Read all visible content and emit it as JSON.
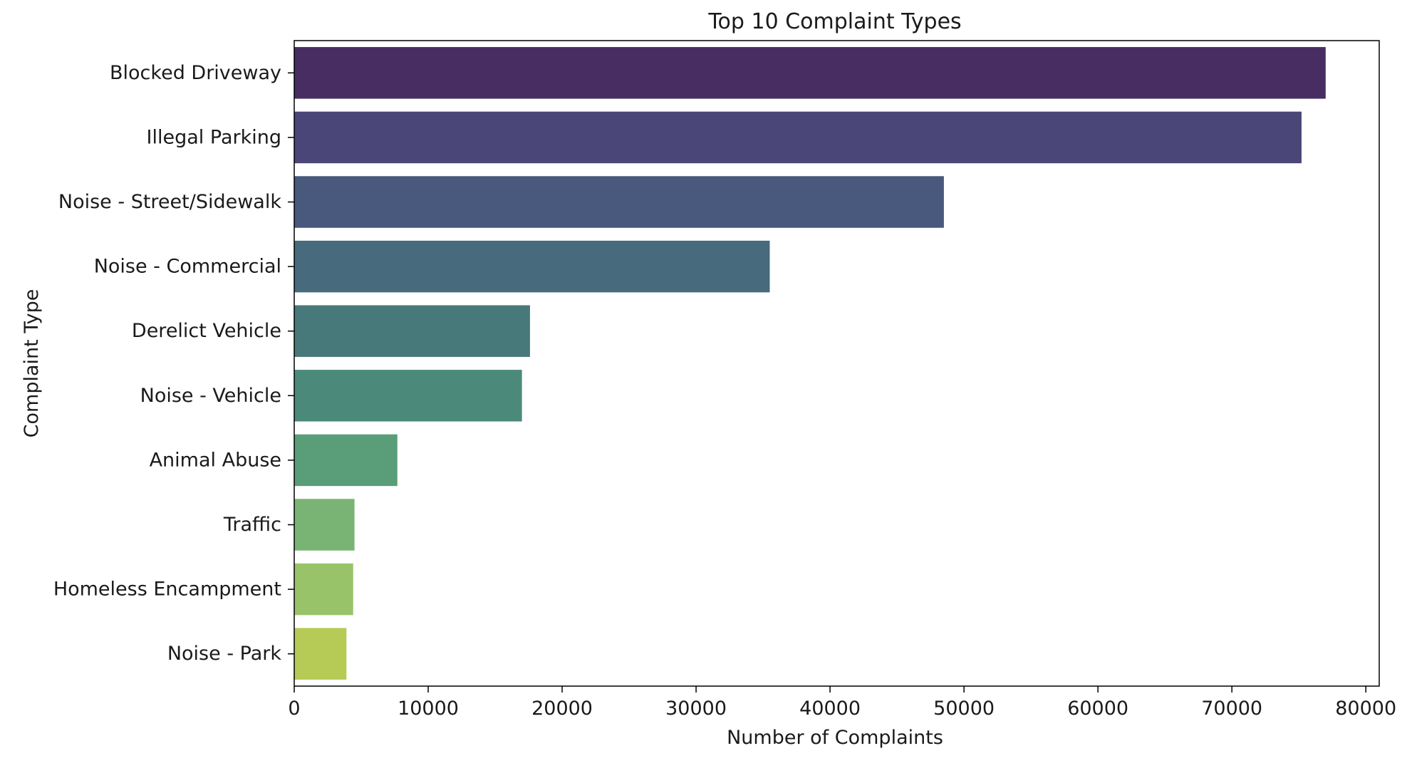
{
  "chart_data": {
    "type": "bar",
    "orientation": "horizontal",
    "title": "Top 10 Complaint Types",
    "xlabel": "Number of Complaints",
    "ylabel": "Complaint Type",
    "categories": [
      "Blocked Driveway",
      "Illegal Parking",
      "Noise - Street/Sidewalk",
      "Noise - Commercial",
      "Derelict Vehicle",
      "Noise - Vehicle",
      "Animal Abuse",
      "Traffic",
      "Homeless Encampment",
      "Noise - Park"
    ],
    "values": [
      77000,
      75200,
      48500,
      35500,
      17600,
      17000,
      7700,
      4500,
      4400,
      3900
    ],
    "xlim": [
      0,
      81000
    ],
    "xticks": [
      0,
      10000,
      20000,
      30000,
      40000,
      50000,
      60000,
      70000,
      80000
    ],
    "grid": false,
    "palette": "viridis",
    "colors": [
      "#472d62",
      "#4a4677",
      "#48597d",
      "#476a7c",
      "#47787a",
      "#4b8a7b",
      "#5a9d79",
      "#79b474",
      "#98c369",
      "#b5cb55"
    ]
  }
}
